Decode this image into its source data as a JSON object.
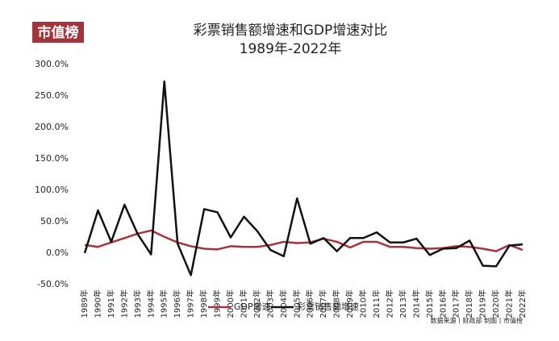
{
  "logo": "市值榜",
  "chart_data": {
    "type": "line",
    "title": "彩票销售额增速和GDP增速对比",
    "subtitle": "1989年-2022年",
    "source": "数据来源丨财政部 制图丨市值榜",
    "categories": [
      "1989年",
      "1990年",
      "1991年",
      "1992年",
      "1993年",
      "1994年",
      "1995年",
      "1996年",
      "1997年",
      "1998年",
      "1999年",
      "2000年",
      "2001年",
      "2002年",
      "2003年",
      "2004年",
      "2005年",
      "2006年",
      "2007年",
      "2008年",
      "2009年",
      "2010年",
      "2011年",
      "2012年",
      "2013年",
      "2014年",
      "2015年",
      "2016年",
      "2017年",
      "2018年",
      "2019年",
      "2020年",
      "2021年",
      "2022年"
    ],
    "series": [
      {
        "name": "GDP增速",
        "color": "#a3343c",
        "values": [
          13,
          10,
          17,
          24,
          31,
          36,
          26,
          17,
          11,
          7,
          6,
          11,
          10,
          10,
          13,
          18,
          16,
          17,
          23,
          18,
          9,
          18,
          18,
          10,
          10,
          8,
          7,
          8,
          11,
          10,
          7,
          3,
          13,
          5
        ]
      },
      {
        "name": "彩票销售额增速",
        "color": "#111111",
        "values": [
          0,
          68,
          18,
          77,
          30,
          -2,
          273,
          15,
          -35,
          70,
          65,
          25,
          58,
          35,
          5,
          -5,
          87,
          15,
          24,
          3,
          24,
          24,
          33,
          17,
          17,
          23,
          -3,
          7,
          8,
          20,
          -20,
          -21,
          12,
          14
        ]
      }
    ],
    "ylim": [
      -50,
      300
    ],
    "yticks": [
      {
        "value": -50,
        "label": "-50.0%"
      },
      {
        "value": 0,
        "label": "0.0%"
      },
      {
        "value": 50,
        "label": "50.0%"
      },
      {
        "value": 100,
        "label": "100.0%"
      },
      {
        "value": 150,
        "label": "150.0%"
      },
      {
        "value": 200,
        "label": "200.0%"
      },
      {
        "value": 250,
        "label": "250.0%"
      },
      {
        "value": 300,
        "label": "300.0%"
      }
    ],
    "legend": "bottom"
  }
}
